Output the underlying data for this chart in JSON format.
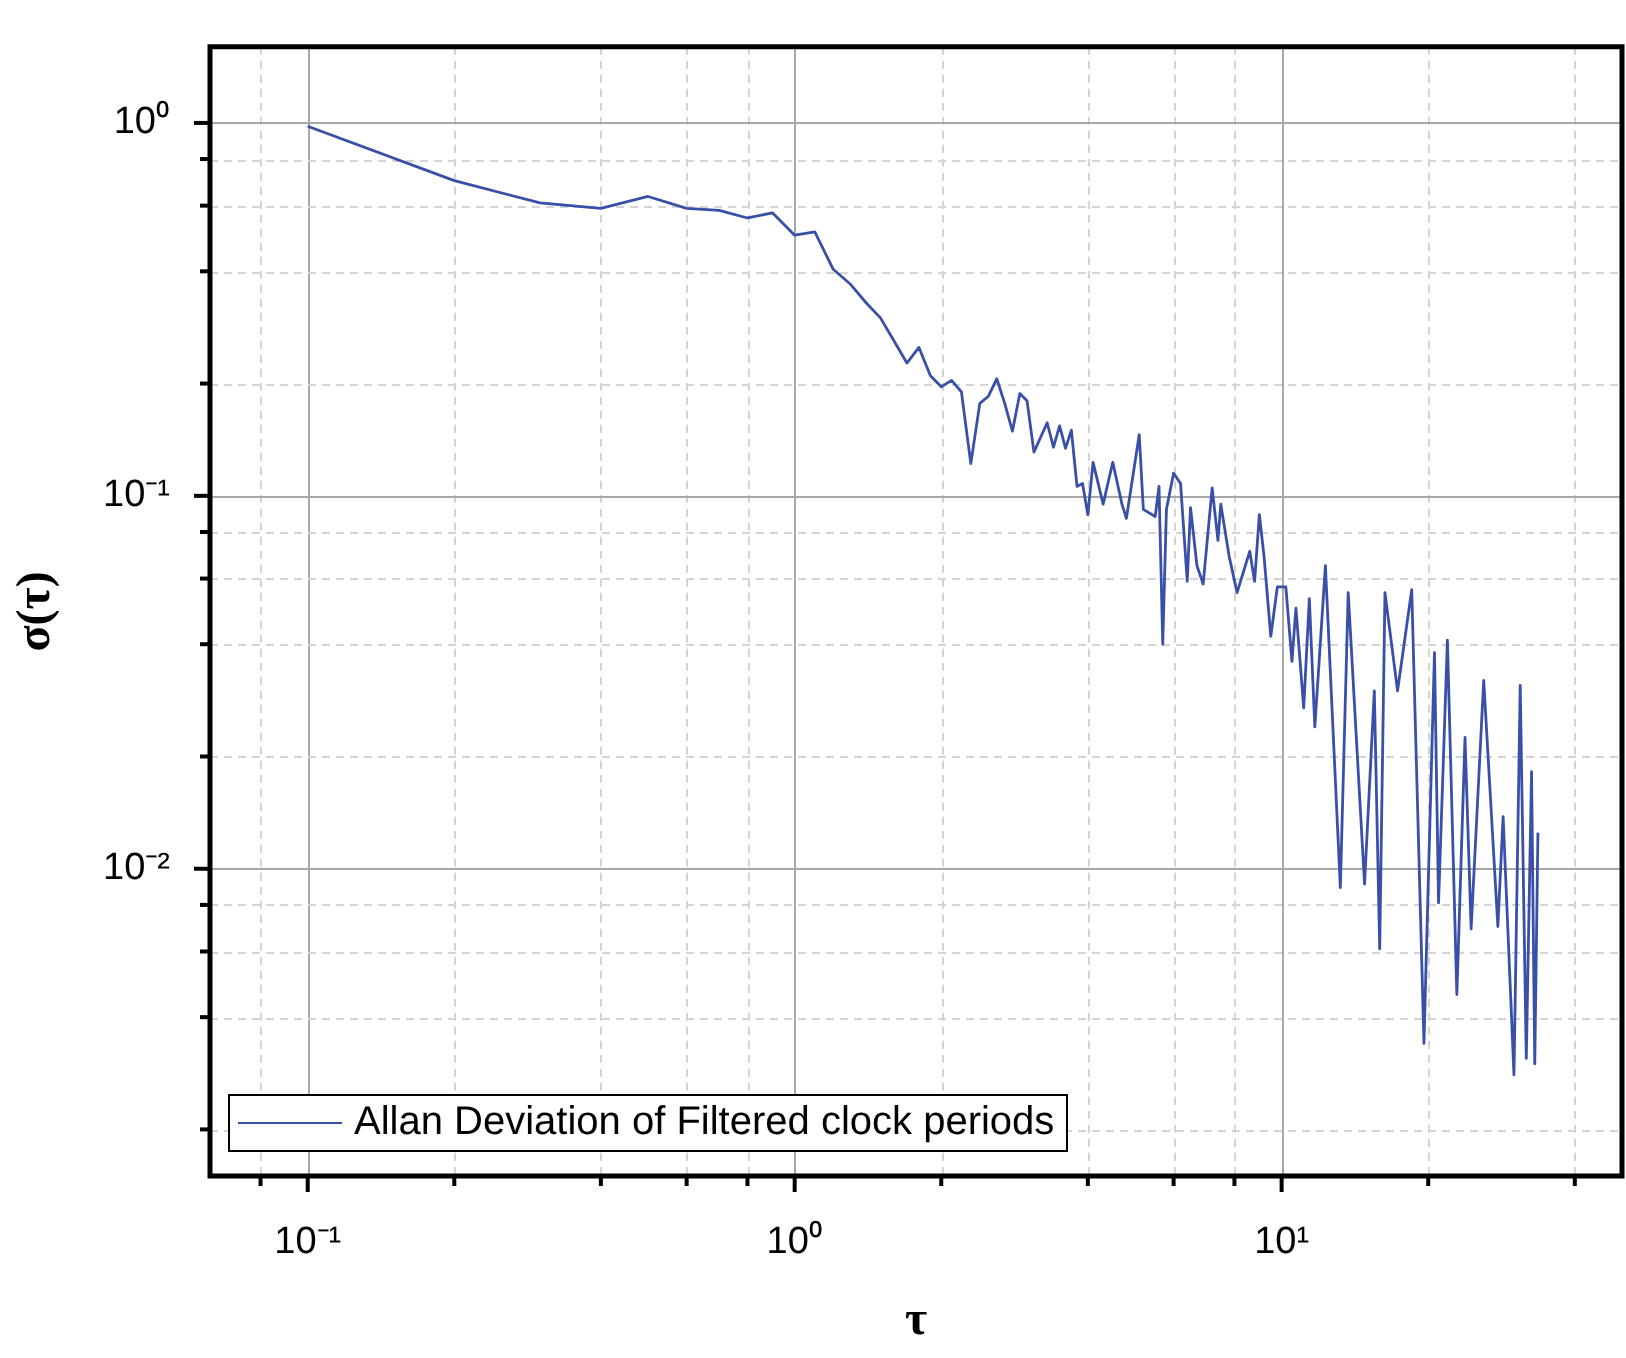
{
  "chart_data": {
    "type": "line",
    "xlabel": "τ",
    "ylabel": "σ(τ)",
    "log": "xy",
    "grid": true,
    "legend": "bottom left",
    "marker": "none",
    "line_style": "solid",
    "xlim": [
      0.063,
      50
    ],
    "ylim": [
      0.0015,
      1.6
    ],
    "xticks": [
      {
        "value": 0.08,
        "label": null
      },
      {
        "value": 0.1,
        "label": "10⁻¹"
      },
      {
        "value": 0.2,
        "label": null
      },
      {
        "value": 0.4,
        "label": null
      },
      {
        "value": 0.6,
        "label": null
      },
      {
        "value": 0.8,
        "label": null
      },
      {
        "value": 1,
        "label": "10⁰"
      },
      {
        "value": 2,
        "label": null
      },
      {
        "value": 4,
        "label": null
      },
      {
        "value": 6,
        "label": null
      },
      {
        "value": 8,
        "label": null
      },
      {
        "value": 10,
        "label": "10¹"
      },
      {
        "value": 20,
        "label": null
      },
      {
        "value": 40,
        "label": null
      }
    ],
    "yticks": [
      {
        "value": 0.002,
        "label": null
      },
      {
        "value": 0.004,
        "label": null
      },
      {
        "value": 0.006,
        "label": null
      },
      {
        "value": 0.008,
        "label": null
      },
      {
        "value": 0.01,
        "label": "10⁻²"
      },
      {
        "value": 0.02,
        "label": null
      },
      {
        "value": 0.04,
        "label": null
      },
      {
        "value": 0.06,
        "label": null
      },
      {
        "value": 0.08,
        "label": null
      },
      {
        "value": 0.1,
        "label": "10⁻¹"
      },
      {
        "value": 0.2,
        "label": null
      },
      {
        "value": 0.4,
        "label": null
      },
      {
        "value": 0.6,
        "label": null
      },
      {
        "value": 0.8,
        "label": null
      },
      {
        "value": 1,
        "label": "10⁰"
      }
    ],
    "x": [
      0.1,
      0.2,
      0.3,
      0.4,
      0.5,
      0.6,
      0.7,
      0.8,
      0.9,
      1.0,
      1.1,
      1.2,
      1.3,
      1.4,
      1.5,
      1.6,
      1.7,
      1.8,
      1.9,
      2.0,
      2.1,
      2.2,
      2.3,
      2.4,
      2.5,
      2.6,
      2.7,
      2.8,
      2.9,
      3.0,
      3.1,
      3.3,
      3.4,
      3.5,
      3.6,
      3.7,
      3.8,
      3.9,
      4.0,
      4.1,
      4.3,
      4.5,
      4.7,
      4.8,
      5.1,
      5.2,
      5.5,
      5.6,
      5.7,
      5.8,
      6.0,
      6.2,
      6.4,
      6.5,
      6.7,
      6.9,
      7.2,
      7.4,
      7.5,
      7.8,
      8.1,
      8.6,
      8.8,
      9.0,
      9.2,
      9.5,
      9.8,
      10.2,
      10.5,
      10.7,
      11.1,
      11.4,
      11.7,
      12.3,
      12.6,
      13.2,
      13.7,
      14.8,
      15.5,
      15.9,
      16.3,
      17.3,
      18.5,
      19.6,
      20.6,
      21.0,
      21.9,
      22.9,
      23.8,
      24.5,
      26.0,
      27.8,
      28.5,
      30.0,
      30.9,
      31.8,
      32.6,
      33.1,
      33.6
    ],
    "series": [
      {
        "name": "Allan Deviation of Filtered clock periods",
        "color": "#3a50a8",
        "values": [
          0.98,
          0.7,
          0.61,
          0.59,
          0.635,
          0.59,
          0.583,
          0.556,
          0.574,
          0.5,
          0.51,
          0.405,
          0.37,
          0.33,
          0.3,
          0.26,
          0.227,
          0.25,
          0.21,
          0.196,
          0.204,
          0.19,
          0.122,
          0.177,
          0.185,
          0.206,
          0.177,
          0.149,
          0.188,
          0.18,
          0.131,
          0.157,
          0.135,
          0.154,
          0.134,
          0.15,
          0.106,
          0.108,
          0.089,
          0.123,
          0.095,
          0.123,
          0.095,
          0.087,
          0.146,
          0.092,
          0.088,
          0.106,
          0.04,
          0.092,
          0.115,
          0.108,
          0.059,
          0.093,
          0.065,
          0.058,
          0.105,
          0.076,
          0.095,
          0.069,
          0.055,
          0.071,
          0.059,
          0.089,
          0.069,
          0.042,
          0.057,
          0.057,
          0.036,
          0.05,
          0.027,
          0.053,
          0.024,
          0.065,
          0.033,
          0.0089,
          0.055,
          0.0091,
          0.03,
          0.0061,
          0.055,
          0.03,
          0.056,
          0.0034,
          0.038,
          0.0081,
          0.041,
          0.0046,
          0.0225,
          0.0069,
          0.032,
          0.007,
          0.0138,
          0.0028,
          0.031,
          0.0031,
          0.0182,
          0.003,
          0.0125
        ]
      }
    ]
  }
}
